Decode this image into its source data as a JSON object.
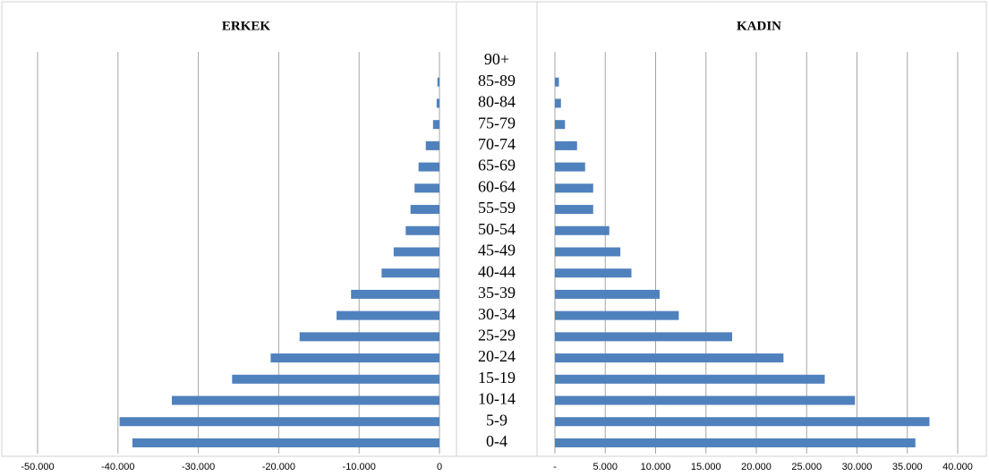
{
  "chart_data": {
    "type": "pyramid",
    "categories": [
      "90+",
      "85-89",
      "80-84",
      "75-79",
      "70-74",
      "65-69",
      "60-64",
      "55-59",
      "50-54",
      "45-49",
      "40-44",
      "35-39",
      "30-34",
      "25-29",
      "20-24",
      "15-19",
      "10-14",
      "5-9",
      "0-4"
    ],
    "series": [
      {
        "name": "ERKEK",
        "color": "#4f81bd",
        "values": [
          0,
          -250,
          -350,
          -800,
          -1700,
          -2600,
          -3100,
          -3600,
          -4200,
          -5700,
          -7200,
          -11000,
          -12800,
          -17400,
          -21000,
          -25800,
          -33300,
          -39800,
          -38200
        ],
        "xlim": [
          -50000,
          0
        ],
        "xticks": [
          {
            "value": -50000,
            "label": "-50.000"
          },
          {
            "value": -40000,
            "label": "-40.000"
          },
          {
            "value": -30000,
            "label": "-30.000"
          },
          {
            "value": -20000,
            "label": "-20.000"
          },
          {
            "value": -10000,
            "label": "-10.000"
          },
          0
        ]
      },
      {
        "name": "KADIN",
        "color": "#4f81bd",
        "values": [
          0,
          400,
          600,
          1000,
          2200,
          3000,
          3800,
          3800,
          5400,
          6500,
          7600,
          10400,
          12300,
          17600,
          22700,
          26800,
          29800,
          37200,
          35800
        ],
        "xlim": [
          0,
          40000
        ],
        "xticks": [
          {
            "value": 0,
            "label": "-"
          },
          {
            "value": 5000,
            "label": "5.000"
          },
          {
            "value": 10000,
            "label": "10.000"
          },
          {
            "value": 15000,
            "label": "15.000"
          },
          {
            "value": 20000,
            "label": "20.000"
          },
          {
            "value": 25000,
            "label": "25.000"
          },
          {
            "value": 30000,
            "label": "30.000"
          },
          {
            "value": 35000,
            "label": "35.000"
          },
          {
            "value": 40000,
            "label": "40.000"
          }
        ]
      }
    ],
    "grid": true
  }
}
